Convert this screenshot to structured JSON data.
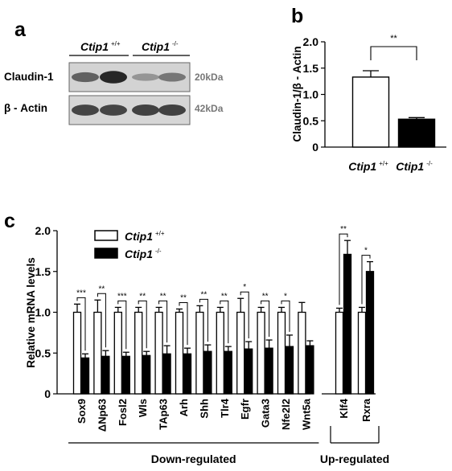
{
  "panel_a": {
    "letter": "a",
    "group_wt": "Ctip1",
    "group_wt_sup": "+/+",
    "group_ko": "Ctip1",
    "group_ko_sup": "-/-",
    "blots": [
      {
        "label": "Claudin-1",
        "size": "20kDa",
        "intensity": [
          0.62,
          0.95,
          0.32,
          0.5
        ]
      },
      {
        "label": "β - Actin",
        "size": "42kDa",
        "intensity": [
          0.78,
          0.78,
          0.8,
          0.8
        ]
      }
    ]
  },
  "chart_data": [
    {
      "type": "bar",
      "panel": "b",
      "ylabel": "Claudin-1/β - Actin",
      "ylim": [
        0,
        2.0
      ],
      "yticks": [
        "0",
        "0.5",
        "1.0",
        "1.5",
        "2.0"
      ],
      "yticks_values": [
        0,
        0.5,
        1.0,
        1.5,
        2.0
      ],
      "categories": [
        "Ctip1",
        "Ctip1"
      ],
      "category_sups": [
        "+/+",
        "-/-"
      ],
      "values": [
        1.33,
        0.53
      ],
      "errors": [
        0.12,
        0.03
      ],
      "fills": [
        "#ffffff",
        "#000000"
      ],
      "significance": "**"
    },
    {
      "type": "bar",
      "panel": "c",
      "ylabel": "Relative mRNA levels",
      "ylim": [
        0,
        2.0
      ],
      "yticks": [
        "0",
        "0.5",
        "1.0",
        "1.5",
        "2.0"
      ],
      "yticks_values": [
        0,
        0.5,
        1.0,
        1.5,
        2.0
      ],
      "legend": [
        {
          "label": "Ctip1",
          "sup": "+/+",
          "fill": "#ffffff"
        },
        {
          "label": "Ctip1",
          "sup": "-/-",
          "fill": "#000000"
        }
      ],
      "categories": [
        "Sox9",
        "ΔNp63",
        "Fosl2",
        "Wls",
        "TAp63",
        "Arh",
        "Shh",
        "Tlr4",
        "Egfr",
        "Gata3",
        "Nfe2l2",
        "Wnt5a",
        "Klf4",
        "Rxra"
      ],
      "series": [
        {
          "values": [
            1.0,
            1.0,
            1.0,
            1.0,
            1.0,
            1.0,
            1.0,
            1.0,
            1.0,
            1.0,
            1.0,
            1.0,
            1.0,
            1.0
          ],
          "errors": [
            0.1,
            0.15,
            0.06,
            0.06,
            0.06,
            0.04,
            0.08,
            0.06,
            0.17,
            0.06,
            0.06,
            0.12,
            0.05,
            0.06
          ]
        },
        {
          "values": [
            0.44,
            0.46,
            0.46,
            0.47,
            0.49,
            0.49,
            0.52,
            0.52,
            0.55,
            0.56,
            0.58,
            0.59,
            1.71,
            1.5
          ],
          "errors": [
            0.05,
            0.07,
            0.05,
            0.05,
            0.1,
            0.07,
            0.08,
            0.06,
            0.09,
            0.1,
            0.14,
            0.06,
            0.17,
            0.12
          ]
        }
      ],
      "significance": [
        "***",
        "**",
        "***",
        "**",
        "**",
        "**",
        "**",
        "**",
        "*",
        "**",
        "*",
        "",
        "**",
        "*"
      ],
      "groups": [
        {
          "label": "Down-regulated",
          "from": 0,
          "to": 11
        },
        {
          "label": "Up-regulated",
          "from": 12,
          "to": 13
        }
      ]
    }
  ]
}
